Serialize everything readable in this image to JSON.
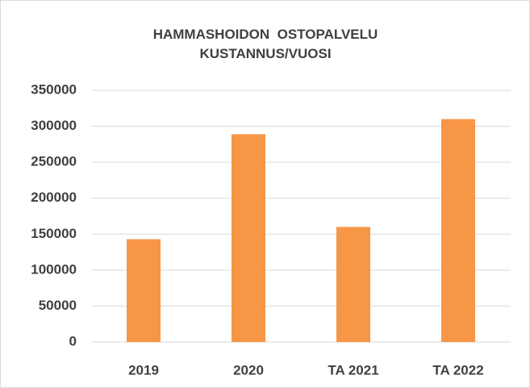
{
  "chart_data": {
    "type": "bar",
    "title": "HAMMASHOIDON  OSTOPALVELU KUSTANNUS/VUOSI",
    "categories": [
      "2019",
      "2020",
      "TA 2021",
      "TA 2022"
    ],
    "values": [
      143000,
      289000,
      160000,
      310000
    ],
    "color": "#f79646",
    "ylim": [
      0,
      350000
    ],
    "yticks": [
      0,
      50000,
      100000,
      150000,
      200000,
      250000,
      300000,
      350000
    ],
    "grid": true
  }
}
